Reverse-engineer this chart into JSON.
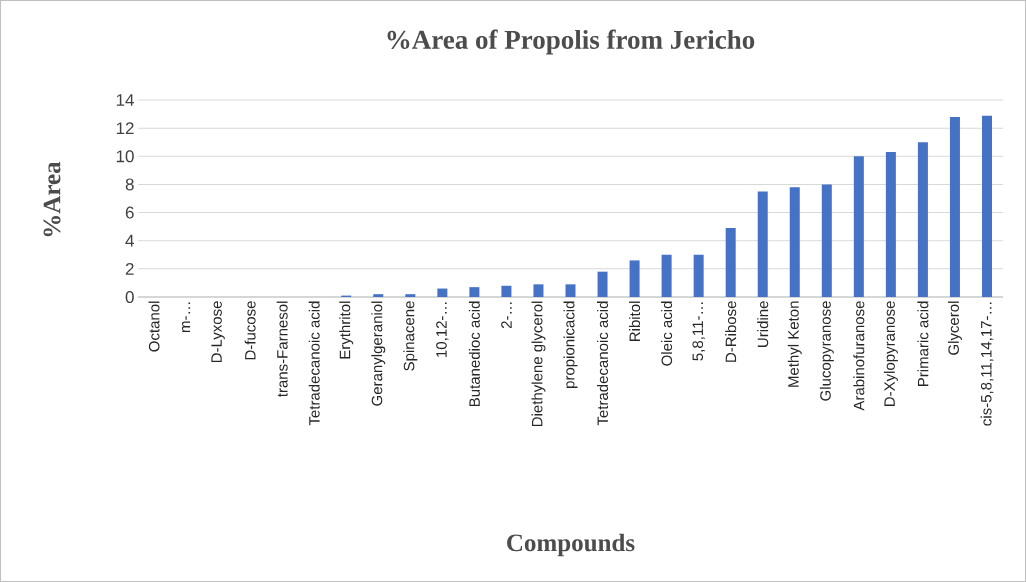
{
  "chart_data": {
    "type": "bar",
    "title": "%Area of Propolis  from Jericho",
    "xlabel": "Compounds",
    "ylabel": "%Area",
    "categories": [
      "Octanol",
      "m-…",
      "D-Lyxose",
      "D-fucose",
      "trans-Farnesol",
      "Tetradecanoic acid",
      "Erythritol",
      "Geranylgeraniol",
      "Spinacene",
      "10,12-…",
      "Butanedioc acid",
      "2-…",
      "Diethylene glycerol",
      "propionicacid",
      "Tetradecanoic acid",
      "Ribitol",
      "Oleic acid",
      "5,8,11-…",
      "D-Ribose",
      "Uridine",
      "Methyl Keton",
      "Glucopyranose",
      "Arabinofuranose",
      "D-Xylopyranose",
      "Primaric acid",
      "Glycerol",
      "cis-5,8,11,14,17-…"
    ],
    "values": [
      0,
      0,
      0,
      0,
      0,
      0,
      0.1,
      0.2,
      0.2,
      0.6,
      0.7,
      0.8,
      0.9,
      0.9,
      1.8,
      2.6,
      3.0,
      3.0,
      4.9,
      7.5,
      7.8,
      8.0,
      10.0,
      10.3,
      11.0,
      12.8,
      12.9
    ],
    "color": "#4472c4",
    "ylim": [
      0,
      14
    ],
    "yticks": [
      0,
      2,
      4,
      6,
      8,
      10,
      12,
      14
    ],
    "grid": "y"
  }
}
